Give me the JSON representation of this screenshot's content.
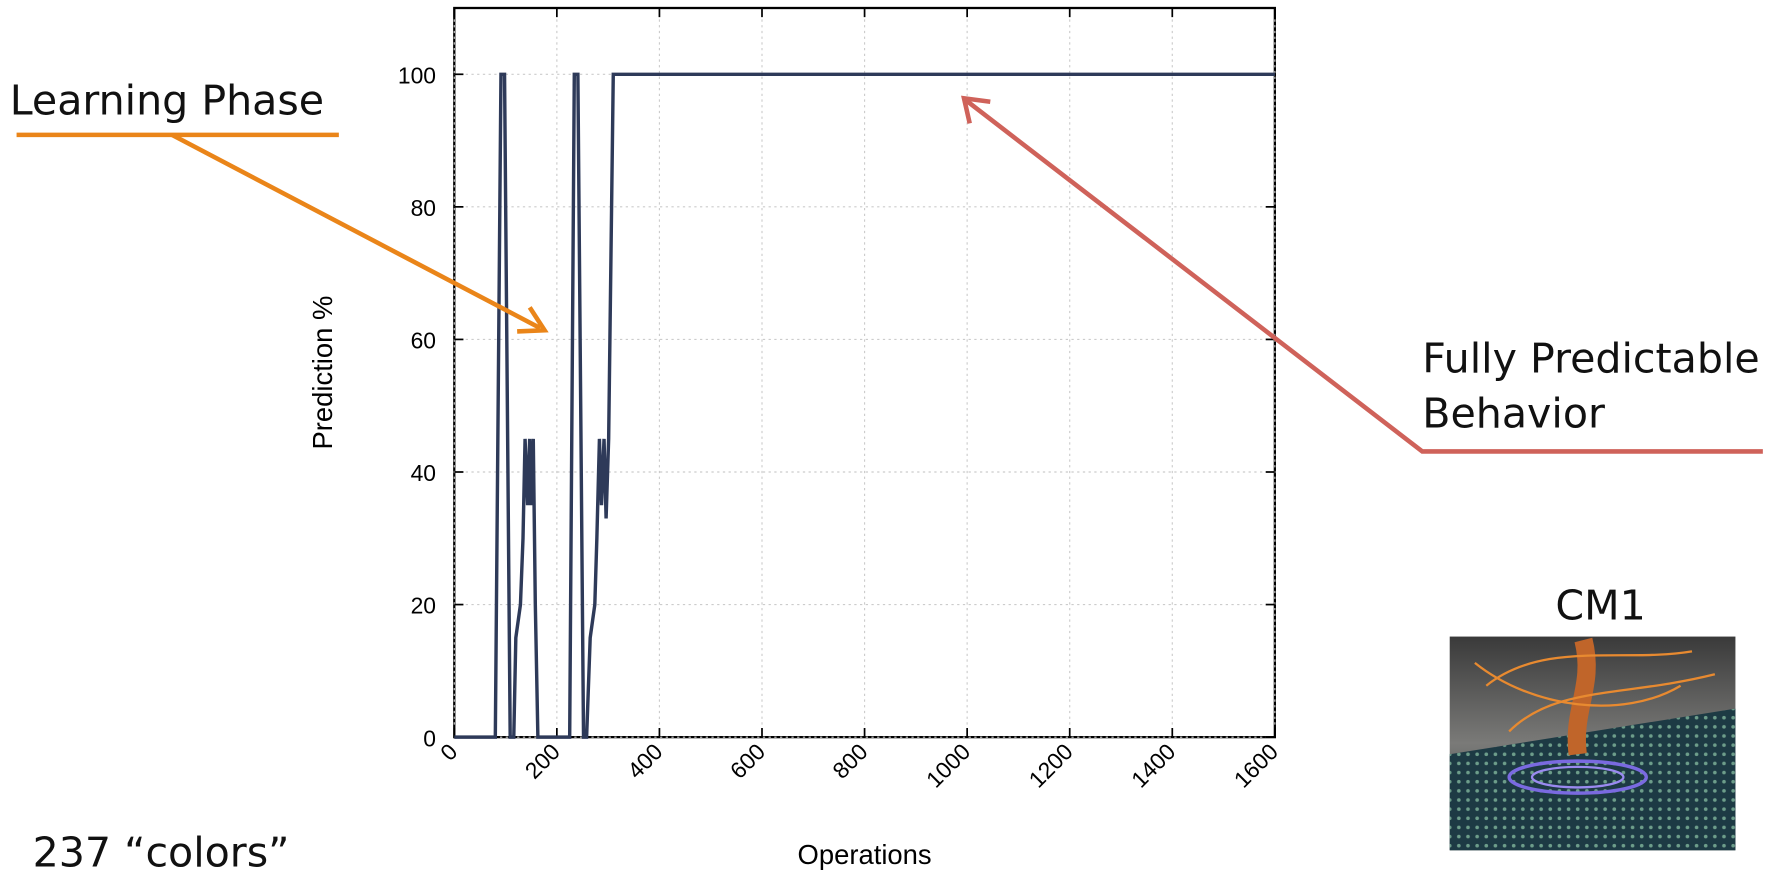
{
  "chart_data": {
    "type": "line",
    "x_label": "Operations",
    "y_label": "Prediction %",
    "x": [
      0,
      80,
      91,
      98,
      109,
      116,
      120,
      129,
      134,
      138,
      143,
      147,
      149,
      154,
      158,
      163,
      225,
      234,
      241,
      252,
      258,
      265,
      274,
      278,
      283,
      287,
      292,
      296,
      301,
      310,
      1600
    ],
    "values": [
      0,
      0,
      100,
      100,
      0,
      0,
      15,
      20,
      30,
      45,
      35,
      45,
      35,
      45,
      20,
      0,
      0,
      100,
      100,
      0,
      0,
      15,
      20,
      30,
      45,
      35,
      45,
      33,
      45,
      100,
      100
    ],
    "color": "#2e3a59",
    "xlim": [
      0,
      1600
    ],
    "xticks": [
      0,
      200,
      400,
      600,
      800,
      1000,
      1200,
      1400,
      1600
    ],
    "ylim": [
      0,
      110
    ],
    "yticks": [
      0,
      20,
      40,
      60,
      80,
      100
    ],
    "grid": true
  },
  "slide": {
    "learning_label": "Learning Phase",
    "predictable_label": [
      "Fully Predictable",
      "Behavior"
    ],
    "image_caption": "CM1",
    "count_label": "237 “colors”"
  }
}
